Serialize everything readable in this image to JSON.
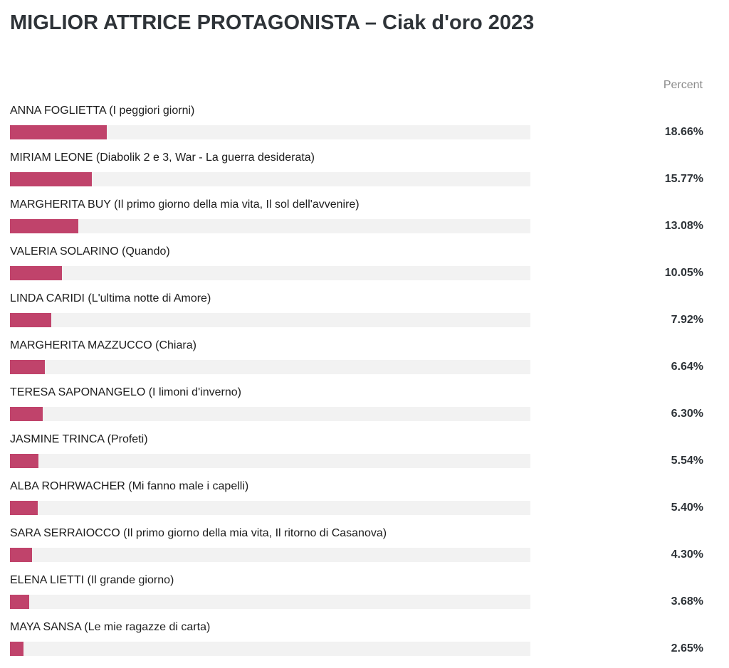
{
  "header": {
    "title": "MIGLIOR ATTRICE PROTAGONISTA – Ciak d'oro 2023",
    "column_label": "Percent"
  },
  "colors": {
    "bar": "#c0436b",
    "track": "#f2f2f2"
  },
  "chart_data": {
    "type": "bar",
    "orientation": "horizontal",
    "title": "MIGLIOR ATTRICE PROTAGONISTA – Ciak d'oro 2023",
    "value_header": "Percent",
    "xlim": [
      0,
      100
    ],
    "grid": false,
    "categories": [
      "ANNA FOGLIETTA (I peggiori giorni)",
      "MIRIAM LEONE (Diabolik 2 e 3, War - La guerra desiderata)",
      "MARGHERITA BUY (Il primo giorno della mia vita, Il sol dell'avvenire)",
      "VALERIA SOLARINO (Quando)",
      "LINDA CARIDI (L'ultima notte di Amore)",
      "MARGHERITA MAZZUCCO (Chiara)",
      "TERESA SAPONANGELO (I limoni d'inverno)",
      "JASMINE TRINCA (Profeti)",
      "ALBA ROHRWACHER (Mi fanno male i capelli)",
      "SARA SERRAIOCCO (Il primo giorno della mia vita, Il ritorno di Casanova)",
      "ELENA LIETTI (Il grande giorno)",
      "MAYA SANSA (Le mie ragazze di carta)"
    ],
    "values": [
      18.66,
      15.77,
      13.08,
      10.05,
      7.92,
      6.64,
      6.3,
      5.54,
      5.4,
      4.3,
      3.68,
      2.65
    ],
    "value_labels": [
      "18.66%",
      "15.77%",
      "13.08%",
      "10.05%",
      "7.92%",
      "6.64%",
      "6.30%",
      "5.54%",
      "5.40%",
      "4.30%",
      "3.68%",
      "2.65%"
    ]
  }
}
